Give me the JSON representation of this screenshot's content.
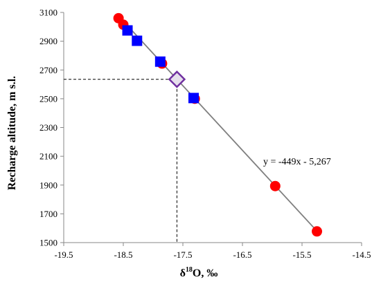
{
  "chart_data": {
    "type": "scatter",
    "title": "",
    "xlabel_main": "δ",
    "xlabel_sup": "18",
    "xlabel_rest": "O, ‰",
    "ylabel": "Recharge altitude, m s.l.",
    "xlim": [
      -19.5,
      -14.5
    ],
    "ylim": [
      1500,
      3100
    ],
    "xticks": [
      -19.5,
      -18.5,
      -17.5,
      -16.5,
      -15.5,
      -14.5
    ],
    "yticks": [
      1500,
      1700,
      1900,
      2100,
      2300,
      2500,
      2700,
      2900,
      3100
    ],
    "grid": false,
    "series": [
      {
        "marker": "circle",
        "color": "#ff0000",
        "points": [
          {
            "x": -18.58,
            "y": 3060
          },
          {
            "x": -18.5,
            "y": 3015
          },
          {
            "x": -17.85,
            "y": 2745
          },
          {
            "x": -17.3,
            "y": 2500
          },
          {
            "x": -15.95,
            "y": 1893
          },
          {
            "x": -15.25,
            "y": 1578
          }
        ]
      },
      {
        "marker": "square",
        "color": "#0000ff",
        "points": [
          {
            "x": -18.43,
            "y": 2975
          },
          {
            "x": -18.27,
            "y": 2903
          },
          {
            "x": -17.88,
            "y": 2758
          },
          {
            "x": -17.32,
            "y": 2505
          }
        ]
      },
      {
        "marker": "diamond",
        "color": "#7030a0",
        "points": [
          {
            "x": -17.6,
            "y": 2635
          }
        ]
      }
    ],
    "trendline": {
      "label": "y = -449x - 5,267",
      "slope": -449,
      "intercept": -5267,
      "x_from": -18.6,
      "x_to": -15.2,
      "color": "#808080"
    },
    "reference_point": {
      "x": -17.6,
      "y": 2635
    }
  }
}
